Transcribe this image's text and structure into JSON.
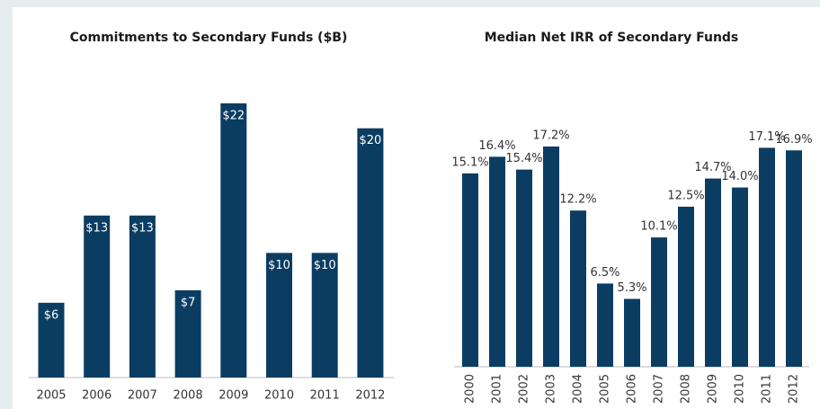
{
  "chart_data": [
    {
      "type": "bar",
      "title": "Commitments to Secondary Funds ($B)",
      "color": "#0b3d63",
      "categories": [
        "2005",
        "2006",
        "2007",
        "2008",
        "2009",
        "2010",
        "2011",
        "2012"
      ],
      "values": [
        6,
        13,
        13,
        7,
        22,
        10,
        10,
        20
      ],
      "value_labels": [
        "$6",
        "$13",
        "$13",
        "$7",
        "$22",
        "$10",
        "$10",
        "$20"
      ]
    },
    {
      "type": "bar",
      "title": "Median Net IRR of Secondary Funds",
      "color": "#0b3d63",
      "categories": [
        "2000",
        "2001",
        "2002",
        "2003",
        "2004",
        "2005",
        "2006",
        "2007",
        "2008",
        "2009",
        "2010",
        "2011",
        "2012"
      ],
      "values": [
        15.1,
        16.4,
        15.4,
        17.2,
        12.2,
        6.5,
        5.3,
        10.1,
        12.5,
        14.7,
        14,
        17.1,
        16.9
      ],
      "value_labels": [
        "15.1%",
        "16.4%",
        "15.4%",
        "17.2%",
        "12.2%",
        "6.5%",
        "5.3%",
        "10.1%",
        "12.5%",
        "14.7%",
        "14.0%",
        "17.1%",
        "16.9%"
      ]
    }
  ]
}
